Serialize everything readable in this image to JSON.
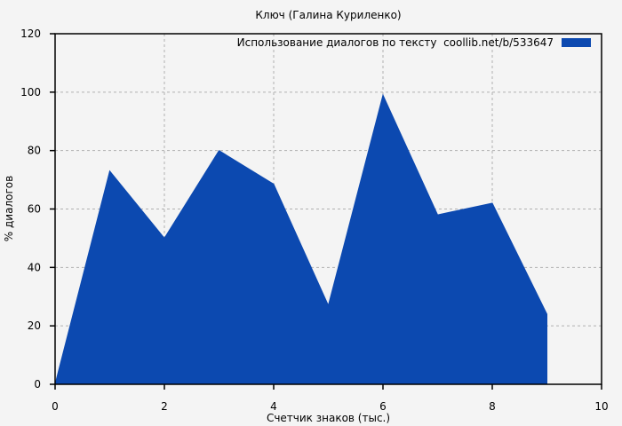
{
  "title": "Ключ (Галина Куриленко)",
  "legend": {
    "label": "Использование диалогов по тексту  coollib.net/b/533647",
    "swatch_color": "#0c49b0"
  },
  "chart_data": {
    "type": "area",
    "title": "Ключ (Галина Куриленко)",
    "series_name": "Использование диалогов по тексту  coollib.net/b/533647",
    "x": [
      0,
      1,
      2,
      3,
      4,
      5,
      6,
      7,
      8,
      9
    ],
    "values": [
      0,
      73,
      50,
      80,
      68.5,
      27,
      99,
      58,
      62,
      24
    ],
    "closes_to_zero_at_end": true,
    "xlabel": "Счетчик знаков (тыс.)",
    "ylabel": "% диалогов",
    "xlim": [
      0,
      10
    ],
    "ylim": [
      0,
      120
    ],
    "xticks": [
      0,
      2,
      4,
      6,
      8,
      10
    ],
    "yticks": [
      0,
      20,
      40,
      60,
      80,
      100,
      120
    ],
    "grid": true,
    "grid_style": "dashed",
    "legend_position": "top-right-inside",
    "fill_color": "#0c49b0",
    "background_color": "#f4f4f4",
    "grid_color": "#b0b0b0",
    "frame_color": "#000000",
    "text_color": "#000000"
  }
}
